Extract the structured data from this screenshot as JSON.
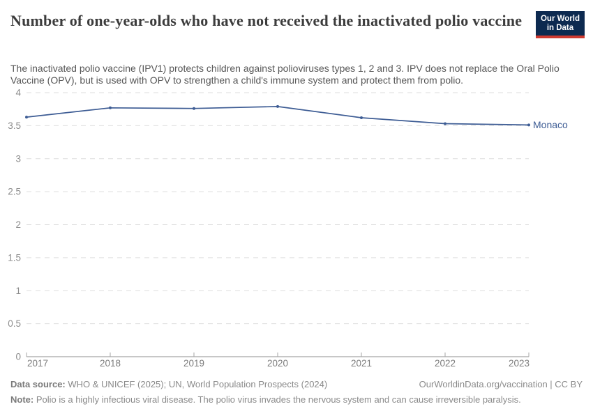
{
  "header": {
    "title": "Number of one-year-olds who have not received the inactivated polio vaccine",
    "subtitle": "The inactivated polio vaccine (IPV1) protects children against polioviruses types 1, 2 and 3. IPV does not replace the Oral Polio Vaccine (OPV), but is used with OPV to strengthen a child's immune system and protect them from polio.",
    "logo": {
      "line1": "Our World",
      "line2": "in Data"
    }
  },
  "chart_data": {
    "type": "line",
    "title": "Number of one-year-olds who have not received the inactivated polio vaccine",
    "x": [
      2017,
      2018,
      2019,
      2020,
      2021,
      2022,
      2023
    ],
    "series": [
      {
        "name": "Monaco",
        "color": "#3d5c94",
        "values": [
          3.63,
          3.77,
          3.76,
          3.79,
          3.62,
          3.53,
          3.51
        ]
      }
    ],
    "ylim": [
      0,
      4
    ],
    "yticks": [
      0,
      0.5,
      1,
      1.5,
      2,
      2.5,
      3,
      3.5,
      4
    ],
    "grid": "horizontal-dashed",
    "legend_position": "line-end-label"
  },
  "footer": {
    "source_label": "Data source:",
    "source_text": "WHO & UNICEF (2025); UN, World Population Prospects (2024)",
    "credit": "OurWorldinData.org/vaccination | CC BY",
    "note_label": "Note:",
    "note_text": "Polio is a highly infectious viral disease. The polio virus invades the nervous system and can cause irreversible paralysis."
  },
  "colors": {
    "line": "#3d5c94",
    "grid": "#dedede",
    "axis": "#8f8f8f",
    "tick": "#a6a6a6",
    "y_label": "#8c8c8c",
    "x_label": "#7c7c7c",
    "logo_bg": "#0d2a50",
    "logo_stripe": "#cf3a30"
  }
}
